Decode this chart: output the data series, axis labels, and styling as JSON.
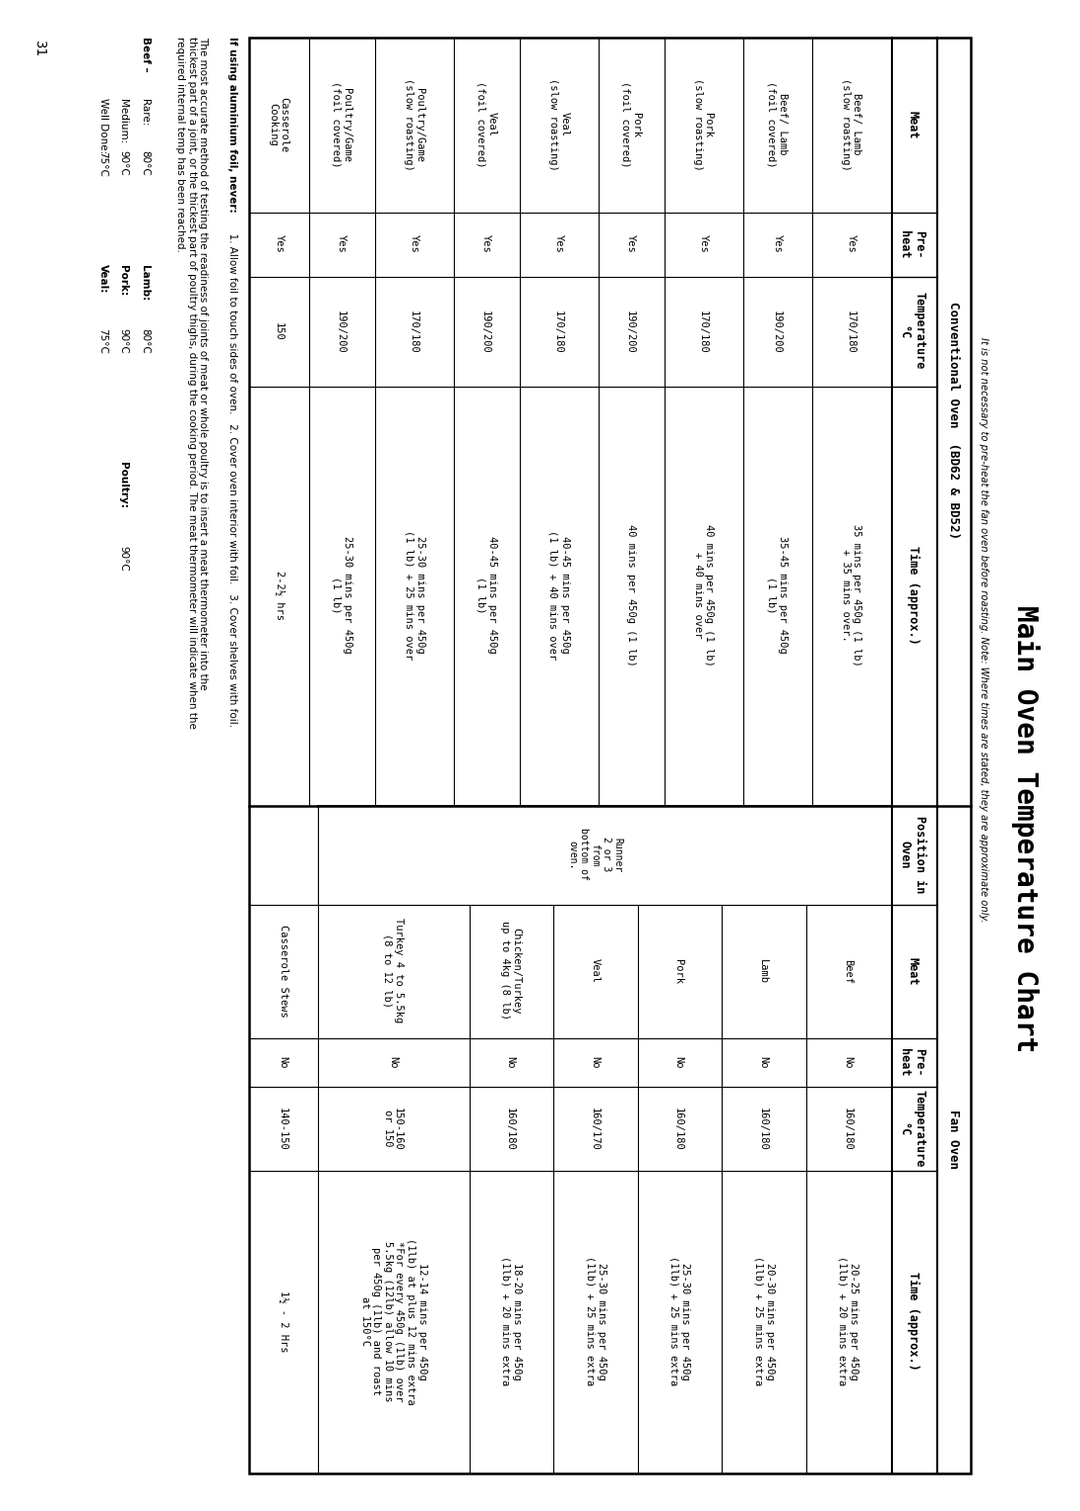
{
  "title": "Main Oven Temperature Chart",
  "subtitle": "It is not necessary to pre-heat the fan oven before roasting. Note: Where times are stated, they are approximate only.",
  "page_num": "31",
  "conv_section_title": "Conventional Oven  (BD62 & BD52)",
  "fan_section_title": "Fan Oven",
  "conv_rows": [
    [
      "Beef/ Lamb\n(slow roasting)",
      "Yes",
      "170/180",
      "35 mins per 450g (1 lb)\n+ 35 mins over."
    ],
    [
      "Beef/ Lamb\n(foil covered)",
      "Yes",
      "190/200",
      "35-45 mins per 450g\n(1 lb)"
    ],
    [
      "Pork\n(slow roasting)",
      "Yes",
      "170/180",
      "40 mins per 450g (1 lb)\n+ 40 mins over"
    ],
    [
      "Pork\n(foil covered)",
      "Yes",
      "190/200",
      "40 mins per 450g (1 lb)"
    ],
    [
      "Veal\n(slow roasting)",
      "Yes",
      "170/180",
      "40-45 mins per 450g\n(1 lb) + 40 mins over"
    ],
    [
      "Veal\n(foil covered)",
      "Yes",
      "190/200",
      "40-45 mins per 450g\n(1 lb)"
    ],
    [
      "Poultry/Game\n(slow roasting)",
      "Yes",
      "170/180",
      "25-30 mins per 450g\n(1 lb) + 25 mins over"
    ],
    [
      "Poultry/Game\n(foil covered)",
      "Yes",
      "190/200",
      "25-30 mins per 450g\n(1 lb)"
    ],
    [
      "Casserole\nCooking",
      "Yes",
      "150",
      "2-2½ hrs"
    ]
  ],
  "fan_rows": [
    [
      "",
      "Beef",
      "No",
      "160/180",
      "20-25 mins per 450g\n(1lb) + 20 mins extra"
    ],
    [
      "",
      "Lamb",
      "No",
      "160/180",
      "20-30 mins per 450g\n(1lb) + 25 mins extra"
    ],
    [
      "",
      "Pork",
      "No",
      "160/180",
      "25-30 mins per 450g\n(1lb) + 25 mins extra"
    ],
    [
      "Runner\n2 or 3\nfrom\nbottom of\noven.",
      "Veal",
      "No",
      "160/170",
      "25-30 mins per 450g\n(1lb) + 25 mins extra"
    ],
    [
      "",
      "Chicken/Turkey\nup to 4kg (8 lb)",
      "No",
      "160/180",
      "18-20 mins per 450g\n(1lb) + 20 mins extra"
    ],
    [
      "",
      "Turkey 4 to 5.5kg\n(8 to 12 lb)",
      "No",
      "150-160\nor 150",
      "12-14 mins per 450g\n(1lb) at plus 12 mins extra\n*For every 450g (1lb) over\n5.5kg (12lb) allow 10 mins\nper 450g (1lb) and roast\nat 150°C"
    ],
    [
      "",
      "Casserole Stews",
      "No",
      "140-150",
      "1½ - 2 Hrs"
    ]
  ],
  "foil_note_bold": "If using aluminium foil, never:",
  "foil_note_rest": "  1. Allow foil to touch sides of oven.   2. Cover oven interior with foil.   3. Cover shelves with foil.",
  "therm_note": "The most accurate method of testing the readiness of joints of meat or whole poultry is to insert a meat thermometer into the\nthickest part of a joint, or the thickest part of poultry thighs, during the cooking period. The meat thermometer will indicate when the\nrequired internal temp has been reached.",
  "bg_color": "#ffffff",
  "text_color": "#000000",
  "border_color": "#000000",
  "fig_w": 15.11,
  "fig_h": 10.8
}
